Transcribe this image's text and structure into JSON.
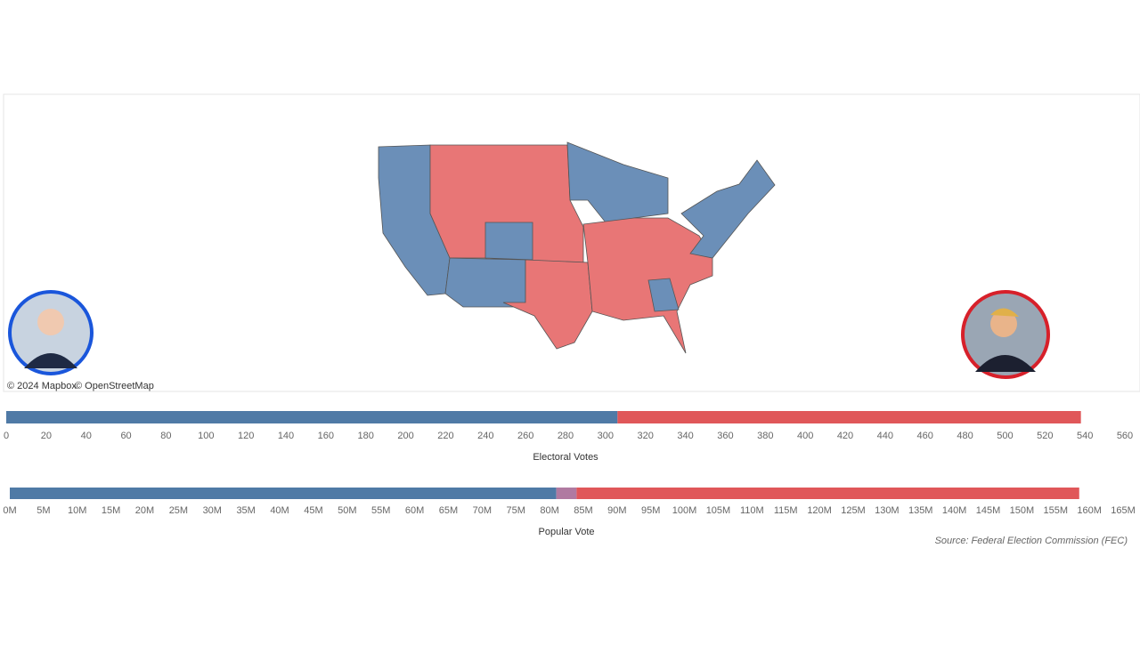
{
  "map": {
    "credits": [
      "© 2024 Mapbox",
      "© OpenStreetMap"
    ]
  },
  "source": "Source: Federal Election Commission (FEC)",
  "chart_data": [
    {
      "type": "bar",
      "orientation": "horizontal",
      "stacked": true,
      "xlabel": "Electoral Votes",
      "xlim": [
        0,
        560
      ],
      "xticks": [
        0,
        20,
        40,
        60,
        80,
        100,
        120,
        140,
        160,
        180,
        200,
        220,
        240,
        260,
        280,
        300,
        320,
        340,
        360,
        380,
        400,
        420,
        440,
        460,
        480,
        500,
        520,
        540,
        560
      ],
      "series": [
        {
          "color": "#4f7aa6",
          "values": [
            306
          ]
        },
        {
          "color": "#e05759",
          "values": [
            232
          ]
        }
      ]
    },
    {
      "type": "bar",
      "orientation": "horizontal",
      "stacked": true,
      "xlabel": "Popular Vote",
      "xlim": [
        0,
        165000000
      ],
      "xticks": [
        {
          "value": 0,
          "label": "0M"
        },
        {
          "value": 5000000,
          "label": "5M"
        },
        {
          "value": 10000000,
          "label": "10M"
        },
        {
          "value": 15000000,
          "label": "15M"
        },
        {
          "value": 20000000,
          "label": "20M"
        },
        {
          "value": 25000000,
          "label": "25M"
        },
        {
          "value": 30000000,
          "label": "30M"
        },
        {
          "value": 35000000,
          "label": "35M"
        },
        {
          "value": 40000000,
          "label": "40M"
        },
        {
          "value": 45000000,
          "label": "45M"
        },
        {
          "value": 50000000,
          "label": "50M"
        },
        {
          "value": 55000000,
          "label": "55M"
        },
        {
          "value": 60000000,
          "label": "60M"
        },
        {
          "value": 65000000,
          "label": "65M"
        },
        {
          "value": 70000000,
          "label": "70M"
        },
        {
          "value": 75000000,
          "label": "75M"
        },
        {
          "value": 80000000,
          "label": "80M"
        },
        {
          "value": 85000000,
          "label": "85M"
        },
        {
          "value": 90000000,
          "label": "90M"
        },
        {
          "value": 95000000,
          "label": "95M"
        },
        {
          "value": 100000000,
          "label": "100M"
        },
        {
          "value": 105000000,
          "label": "105M"
        },
        {
          "value": 110000000,
          "label": "110M"
        },
        {
          "value": 115000000,
          "label": "115M"
        },
        {
          "value": 120000000,
          "label": "120M"
        },
        {
          "value": 125000000,
          "label": "125M"
        },
        {
          "value": 130000000,
          "label": "130M"
        },
        {
          "value": 135000000,
          "label": "135M"
        },
        {
          "value": 140000000,
          "label": "140M"
        },
        {
          "value": 145000000,
          "label": "145M"
        },
        {
          "value": 150000000,
          "label": "150M"
        },
        {
          "value": 155000000,
          "label": "155M"
        },
        {
          "value": 160000000,
          "label": "160M"
        },
        {
          "value": 165000000,
          "label": "165M"
        }
      ],
      "series": [
        {
          "color": "#4f7aa6",
          "values": [
            81000000
          ]
        },
        {
          "color": "#b07aa1",
          "values": [
            3000000
          ]
        },
        {
          "color": "#e05759",
          "values": [
            74500000
          ]
        }
      ]
    }
  ]
}
